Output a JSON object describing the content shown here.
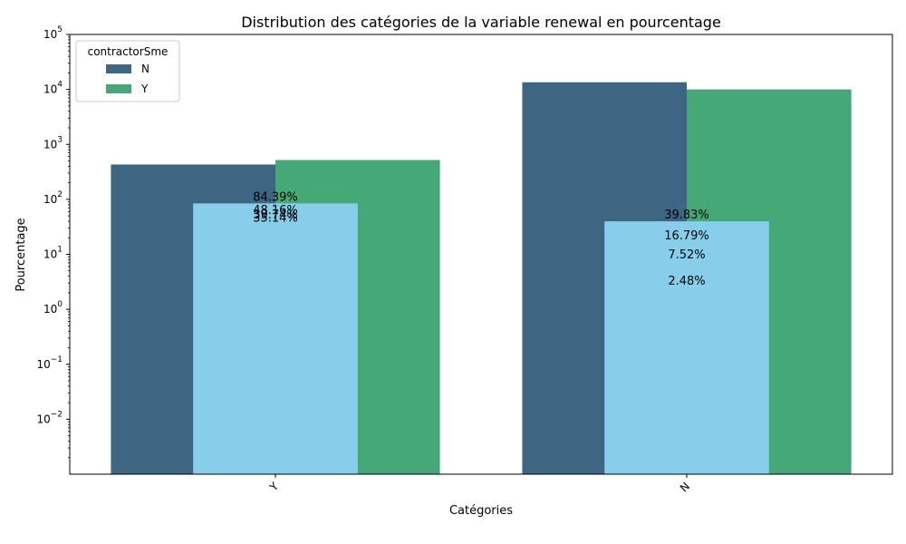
{
  "chart_data": {
    "type": "bar",
    "title": "Distribution des catégories de la variable renewal en pourcentage",
    "xlabel": "Catégories",
    "ylabel": "Pourcentage",
    "categories": [
      "Y",
      "N"
    ],
    "y_scale": "log",
    "ylim": [
      0.001,
      100000
    ],
    "y_ticks": [
      {
        "value": 0.01,
        "base": "10",
        "exp": "−2"
      },
      {
        "value": 0.1,
        "base": "10",
        "exp": "−1"
      },
      {
        "value": 1,
        "base": "10",
        "exp": "0"
      },
      {
        "value": 10,
        "base": "10",
        "exp": "1"
      },
      {
        "value": 100,
        "base": "10",
        "exp": "2"
      },
      {
        "value": 1000,
        "base": "10",
        "exp": "3"
      },
      {
        "value": 10000,
        "base": "10",
        "exp": "4"
      },
      {
        "value": 100000,
        "base": "10",
        "exp": "5"
      }
    ],
    "legend": {
      "title": "contractorSme",
      "placement": "top-left",
      "entries": [
        {
          "label": "N",
          "color": "#3e6683"
        },
        {
          "label": "Y",
          "color": "#45a877"
        }
      ]
    },
    "series": [
      {
        "name": "N",
        "color": "#3e6683",
        "values": [
          430,
          13500
        ]
      },
      {
        "name": "Y",
        "color": "#45a877",
        "values": [
          520,
          10000
        ]
      }
    ],
    "overlay": {
      "color": "#87ceeb",
      "values": [
        84.39,
        39.83
      ]
    },
    "annotations": [
      {
        "category": "Y",
        "text": "84.39%",
        "y": 84.39
      },
      {
        "category": "Y",
        "text": "48.16%",
        "y": 48.16
      },
      {
        "category": "Y",
        "text": "39.74%",
        "y": 39.74
      },
      {
        "category": "Y",
        "text": "35.14%",
        "y": 35.14
      },
      {
        "category": "N",
        "text": "39.83%",
        "y": 39.83
      },
      {
        "category": "N",
        "text": "16.79%",
        "y": 16.79
      },
      {
        "category": "N",
        "text": "7.52%",
        "y": 7.52
      },
      {
        "category": "N",
        "text": "2.48%",
        "y": 2.48
      }
    ],
    "grid": false
  }
}
